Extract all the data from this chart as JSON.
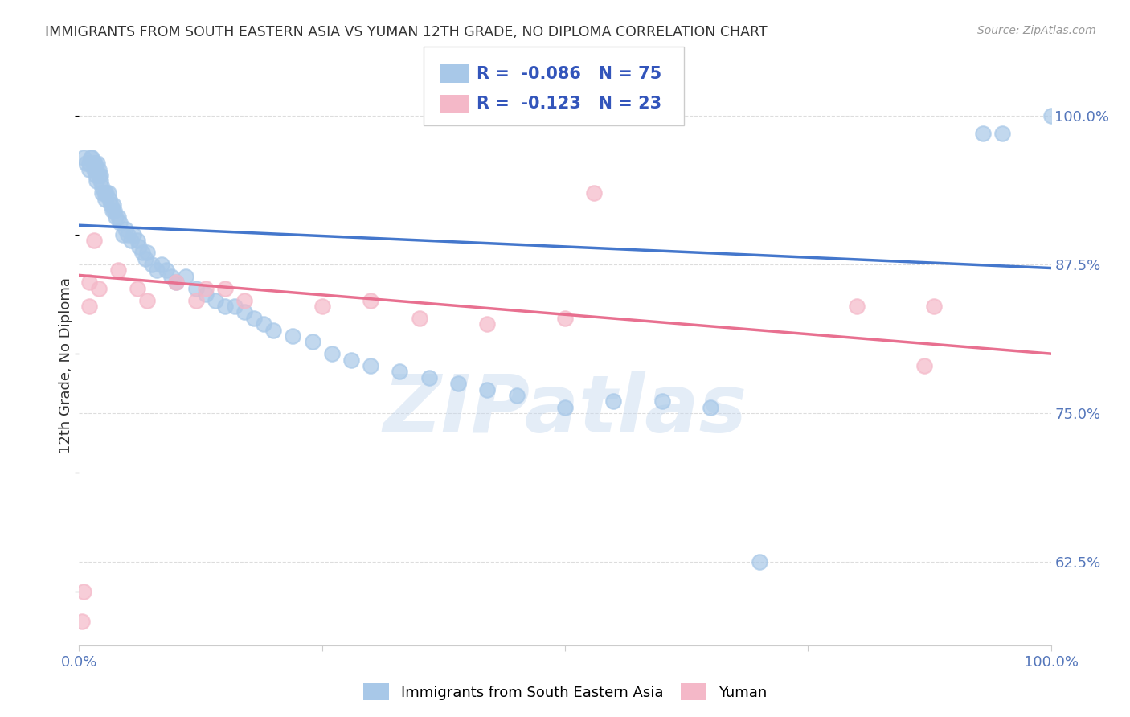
{
  "title": "IMMIGRANTS FROM SOUTH EASTERN ASIA VS YUMAN 12TH GRADE, NO DIPLOMA CORRELATION CHART",
  "source": "Source: ZipAtlas.com",
  "ylabel": "12th Grade, No Diploma",
  "watermark": "ZIPatlas",
  "blue_label": "Immigrants from South Eastern Asia",
  "pink_label": "Yuman",
  "blue_R": -0.086,
  "blue_N": 75,
  "pink_R": -0.123,
  "pink_N": 23,
  "xmin": 0.0,
  "xmax": 1.0,
  "ymin": 0.555,
  "ymax": 1.025,
  "yticks": [
    0.625,
    0.75,
    0.875,
    1.0
  ],
  "ytick_labels": [
    "62.5%",
    "75.0%",
    "87.5%",
    "100.0%"
  ],
  "xticks": [
    0.0,
    0.25,
    0.5,
    0.75,
    1.0
  ],
  "xtick_labels": [
    "0.0%",
    "",
    "",
    "",
    "100.0%"
  ],
  "blue_scatter_x": [
    0.005,
    0.007,
    0.01,
    0.01,
    0.012,
    0.013,
    0.015,
    0.015,
    0.016,
    0.017,
    0.018,
    0.018,
    0.019,
    0.02,
    0.02,
    0.022,
    0.022,
    0.024,
    0.024,
    0.026,
    0.027,
    0.028,
    0.03,
    0.031,
    0.033,
    0.034,
    0.035,
    0.036,
    0.038,
    0.04,
    0.042,
    0.045,
    0.048,
    0.05,
    0.053,
    0.056,
    0.06,
    0.062,
    0.065,
    0.068,
    0.07,
    0.075,
    0.08,
    0.085,
    0.09,
    0.095,
    0.1,
    0.11,
    0.12,
    0.13,
    0.14,
    0.15,
    0.16,
    0.17,
    0.18,
    0.19,
    0.2,
    0.22,
    0.24,
    0.26,
    0.28,
    0.3,
    0.33,
    0.36,
    0.39,
    0.42,
    0.45,
    0.5,
    0.55,
    0.6,
    0.65,
    0.7,
    0.93,
    0.95,
    1.0
  ],
  "blue_scatter_y": [
    0.965,
    0.96,
    0.955,
    0.96,
    0.965,
    0.965,
    0.96,
    0.955,
    0.96,
    0.95,
    0.955,
    0.945,
    0.96,
    0.955,
    0.95,
    0.945,
    0.95,
    0.94,
    0.935,
    0.935,
    0.93,
    0.935,
    0.935,
    0.93,
    0.925,
    0.92,
    0.925,
    0.92,
    0.915,
    0.915,
    0.91,
    0.9,
    0.905,
    0.9,
    0.895,
    0.9,
    0.895,
    0.89,
    0.885,
    0.88,
    0.885,
    0.875,
    0.87,
    0.875,
    0.87,
    0.865,
    0.86,
    0.865,
    0.855,
    0.85,
    0.845,
    0.84,
    0.84,
    0.835,
    0.83,
    0.825,
    0.82,
    0.815,
    0.81,
    0.8,
    0.795,
    0.79,
    0.785,
    0.78,
    0.775,
    0.77,
    0.765,
    0.755,
    0.76,
    0.76,
    0.755,
    0.625,
    0.985,
    0.985,
    1.0
  ],
  "pink_scatter_x": [
    0.003,
    0.005,
    0.01,
    0.01,
    0.015,
    0.02,
    0.04,
    0.06,
    0.07,
    0.1,
    0.12,
    0.13,
    0.15,
    0.17,
    0.25,
    0.3,
    0.35,
    0.42,
    0.5,
    0.53,
    0.8,
    0.87,
    0.88
  ],
  "pink_scatter_y": [
    0.575,
    0.6,
    0.84,
    0.86,
    0.895,
    0.855,
    0.87,
    0.855,
    0.845,
    0.86,
    0.845,
    0.855,
    0.855,
    0.845,
    0.84,
    0.845,
    0.83,
    0.825,
    0.83,
    0.935,
    0.84,
    0.79,
    0.84
  ],
  "blue_line_x0": 0.0,
  "blue_line_y0": 0.908,
  "blue_line_x1": 1.0,
  "blue_line_y1": 0.872,
  "pink_line_x0": 0.0,
  "pink_line_y0": 0.866,
  "pink_line_x1": 1.0,
  "pink_line_y1": 0.8,
  "blue_color": "#A8C8E8",
  "pink_color": "#F4B8C8",
  "blue_line_color": "#4477CC",
  "pink_line_color": "#E87090",
  "title_color": "#333333",
  "axis_label_color": "#5577BB",
  "grid_color": "#DDDDDD",
  "legend_color": "#3355BB",
  "source_color": "#999999"
}
